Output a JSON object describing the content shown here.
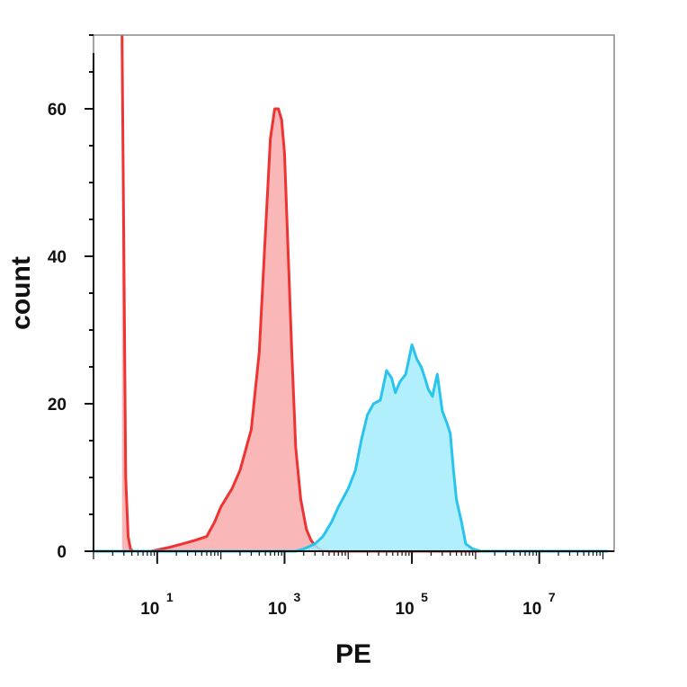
{
  "chart_data": {
    "type": "area",
    "title": "",
    "xlabel": "PE",
    "ylabel": "count",
    "x_scale": "log",
    "xlim": [
      1,
      150000000.0
    ],
    "ylim": [
      0,
      70
    ],
    "grid": false,
    "x_ticks": [
      {
        "value": 10,
        "base": "10",
        "exp": "1"
      },
      {
        "value": 1000,
        "base": "10",
        "exp": "3"
      },
      {
        "value": 100000,
        "base": "10",
        "exp": "5"
      },
      {
        "value": 10000000,
        "base": "10",
        "exp": "7"
      }
    ],
    "y_ticks": [
      {
        "value": 0,
        "label": "0"
      },
      {
        "value": 20,
        "label": "20"
      },
      {
        "value": 40,
        "label": "40"
      },
      {
        "value": 60,
        "label": "60"
      }
    ],
    "series": [
      {
        "color": "#ee3333",
        "fill": "#f8aaaa",
        "x": [
          2.8,
          3,
          3.2,
          3.5,
          3.8,
          4.2,
          8,
          15,
          25,
          40,
          60,
          80,
          100,
          150,
          200,
          300,
          400,
          500,
          600,
          700,
          800,
          900,
          1000,
          1100,
          1300,
          1500,
          1800,
          2200,
          2600,
          3000,
          3500,
          4000,
          5000,
          8000,
          20000,
          100000,
          1000000.0,
          120000000.0
        ],
        "values": [
          70,
          40,
          10,
          2,
          0.3,
          0,
          0,
          0.5,
          1,
          1.5,
          2,
          4,
          6,
          8.5,
          11,
          16.5,
          27,
          43,
          56,
          60,
          60,
          58.5,
          54,
          44,
          27,
          14,
          7,
          3,
          1.5,
          0.8,
          0.3,
          0.1,
          0,
          0,
          0,
          0,
          0,
          0
        ]
      },
      {
        "color": "#29c4ee",
        "fill": "#a4ecfb",
        "x": [
          1,
          1500,
          2000,
          3000,
          4000,
          5500,
          7000,
          10000,
          13000,
          16000,
          20000,
          25000,
          32000,
          40000,
          48000,
          55000,
          65000,
          80000,
          100000,
          120000,
          140000,
          160000,
          180000,
          210000,
          250000,
          300000,
          350000,
          400000,
          450000,
          500000,
          600000,
          700000,
          900000,
          1200000,
          1600000,
          2000000,
          2500000,
          3500000,
          5000000,
          8000000,
          120000000.0
        ],
        "values": [
          0,
          0,
          0.3,
          1,
          2,
          4,
          6,
          8.5,
          11,
          15,
          18.5,
          20,
          20.5,
          24.5,
          23.5,
          21.5,
          23,
          24,
          28,
          26,
          25,
          23.5,
          22,
          21,
          24,
          19,
          17.5,
          16,
          11,
          7,
          4,
          1,
          0.3,
          0,
          0,
          0,
          0,
          0,
          0,
          0,
          0
        ]
      }
    ]
  }
}
